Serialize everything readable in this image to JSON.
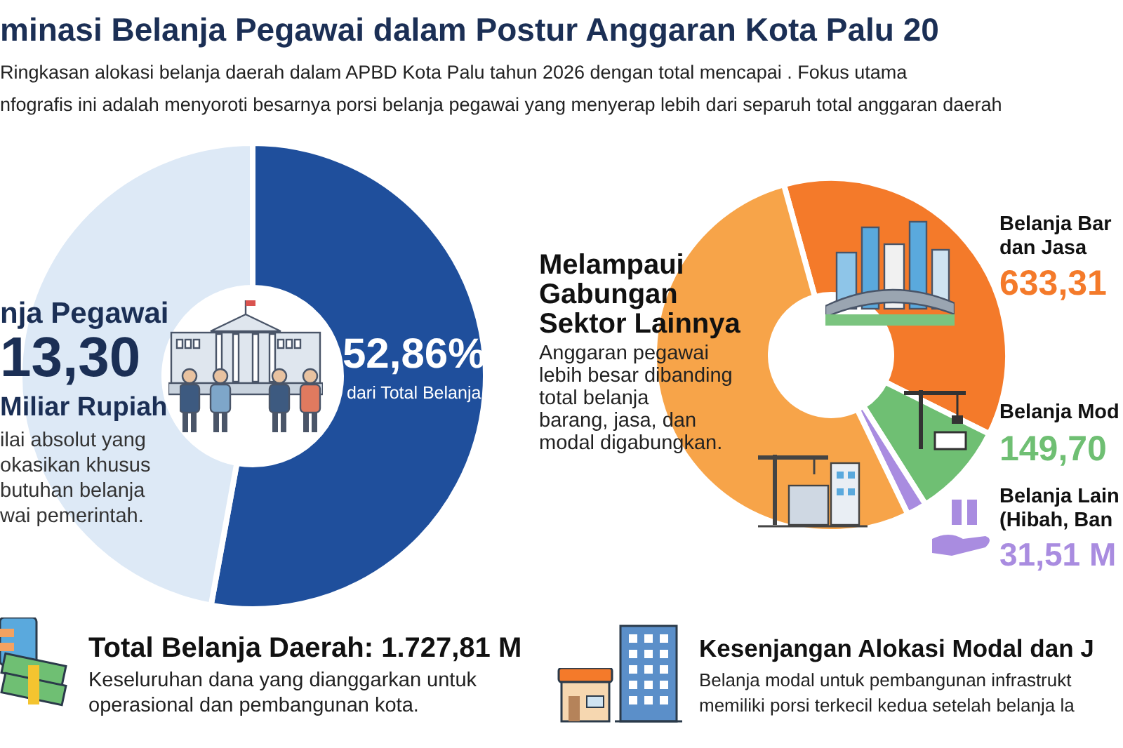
{
  "chart_data": [
    {
      "type": "donut",
      "title": "minasi Belanja Pegawai dalam Postur Anggaran Kota Palu 20",
      "subtitle": "Ringkasan alokasi belanja daerah dalam APBD Kota Palu tahun 2026 dengan total mencapai . Fokus utama\nnfografis ini adalah menyoroti besarnya porsi belanja pegawai yang menyerap lebih dari separuh total anggaran daerah",
      "categories": [
        null,
        null
      ],
      "values": [
        52.86,
        47.14
      ],
      "colors": [
        "#1f4f9c",
        "#dde9f6"
      ],
      "value_labels": [
        "52,86%",
        null
      ],
      "annotations": [
        "nja Pegawai",
        "13,30",
        "Miliar Rupiah",
        "ilai absolut yang",
        "okasikan khusus",
        "butuhan belanja",
        "wai pemerintah.",
        "dari Total Belanja",
        "Total Belanja Daerah: 1.727,81 M",
        "Keseluruhan dana yang dianggarkan untuk",
        "operasional dan pembangunan kota."
      ]
    },
    {
      "type": "donut",
      "categories": [
        "Belanja Bar\ndan Jasa",
        "Belanja Mod",
        "Belanja Lain\n(Hibah, Ban",
        null
      ],
      "values": [
        633.31,
        149.7,
        31.51,
        913.3
      ],
      "colors": [
        "#f47a2a",
        "#6fbf73",
        "#a98ce0",
        "#f7a449"
      ],
      "value_labels": [
        "633,31",
        "149,70",
        "31,51 M",
        null
      ],
      "annotations": [
        "Melampaui",
        "Gabungan",
        "Sektor Lainnya",
        "Anggaran pegawai",
        "lebih besar dibanding",
        "total belanja",
        "barang, jasa, dan",
        "modal digabungkan.",
        "Kesenjangan Alokasi Modal dan J",
        "Belanja modal untuk pembangunan infrastrukt",
        "memiliki porsi terkecil kedua setelah belanja la"
      ]
    }
  ]
}
